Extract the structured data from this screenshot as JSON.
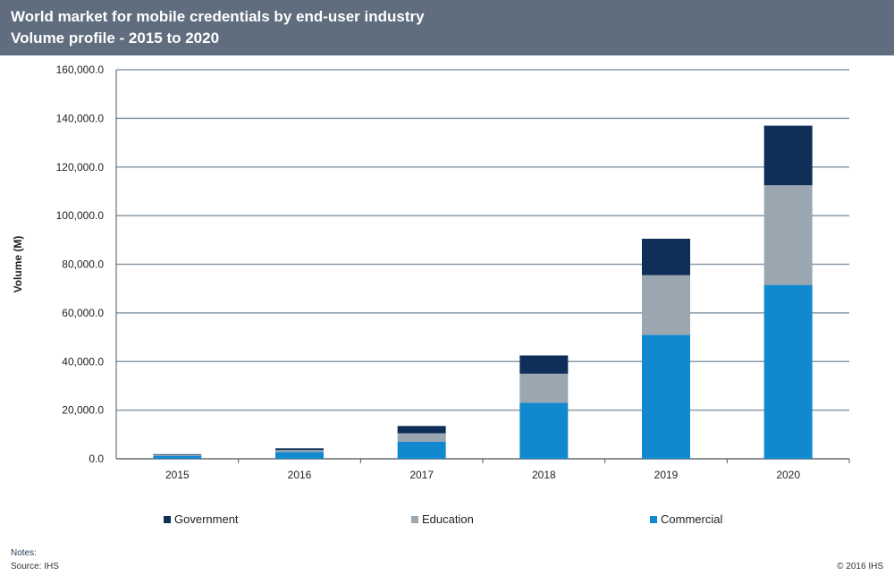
{
  "header": {
    "title_line1": "World market for mobile credentials by end-user industry",
    "title_line2": "Volume profile - 2015 to 2020",
    "background_color": "#5f6d7e"
  },
  "chart_data": {
    "type": "bar",
    "stacked": true,
    "title": "World market for mobile credentials by end-user industry - Volume profile - 2015 to 2020",
    "xlabel": "",
    "ylabel": "Volume (M)",
    "ylim": [
      0,
      160000
    ],
    "yticks": [
      0,
      20000,
      40000,
      60000,
      80000,
      100000,
      120000,
      140000,
      160000
    ],
    "ytick_labels": [
      "0.0",
      "20,000.0",
      "40,000.0",
      "60,000.0",
      "80,000.0",
      "100,000.0",
      "120,000.0",
      "140,000.0",
      "160,000.0"
    ],
    "grid": true,
    "legend_position": "bottom",
    "categories": [
      "2015",
      "2016",
      "2017",
      "2018",
      "2019",
      "2020"
    ],
    "series": [
      {
        "name": "Commercial",
        "color": "#1288cf",
        "values": [
          1200,
          2800,
          7000,
          23000,
          51000,
          71500
        ]
      },
      {
        "name": "Education",
        "color": "#9aa6b0",
        "values": [
          400,
          800,
          3500,
          12000,
          24500,
          41000
        ]
      },
      {
        "name": "Government",
        "color": "#102f58",
        "values": [
          300,
          700,
          3000,
          7500,
          15000,
          24500
        ]
      }
    ],
    "legend_order": [
      "Government",
      "Education",
      "Commercial"
    ]
  },
  "footer": {
    "notes_label": "Notes:",
    "source": "Source: IHS",
    "copyright": "© 2016 IHS"
  }
}
